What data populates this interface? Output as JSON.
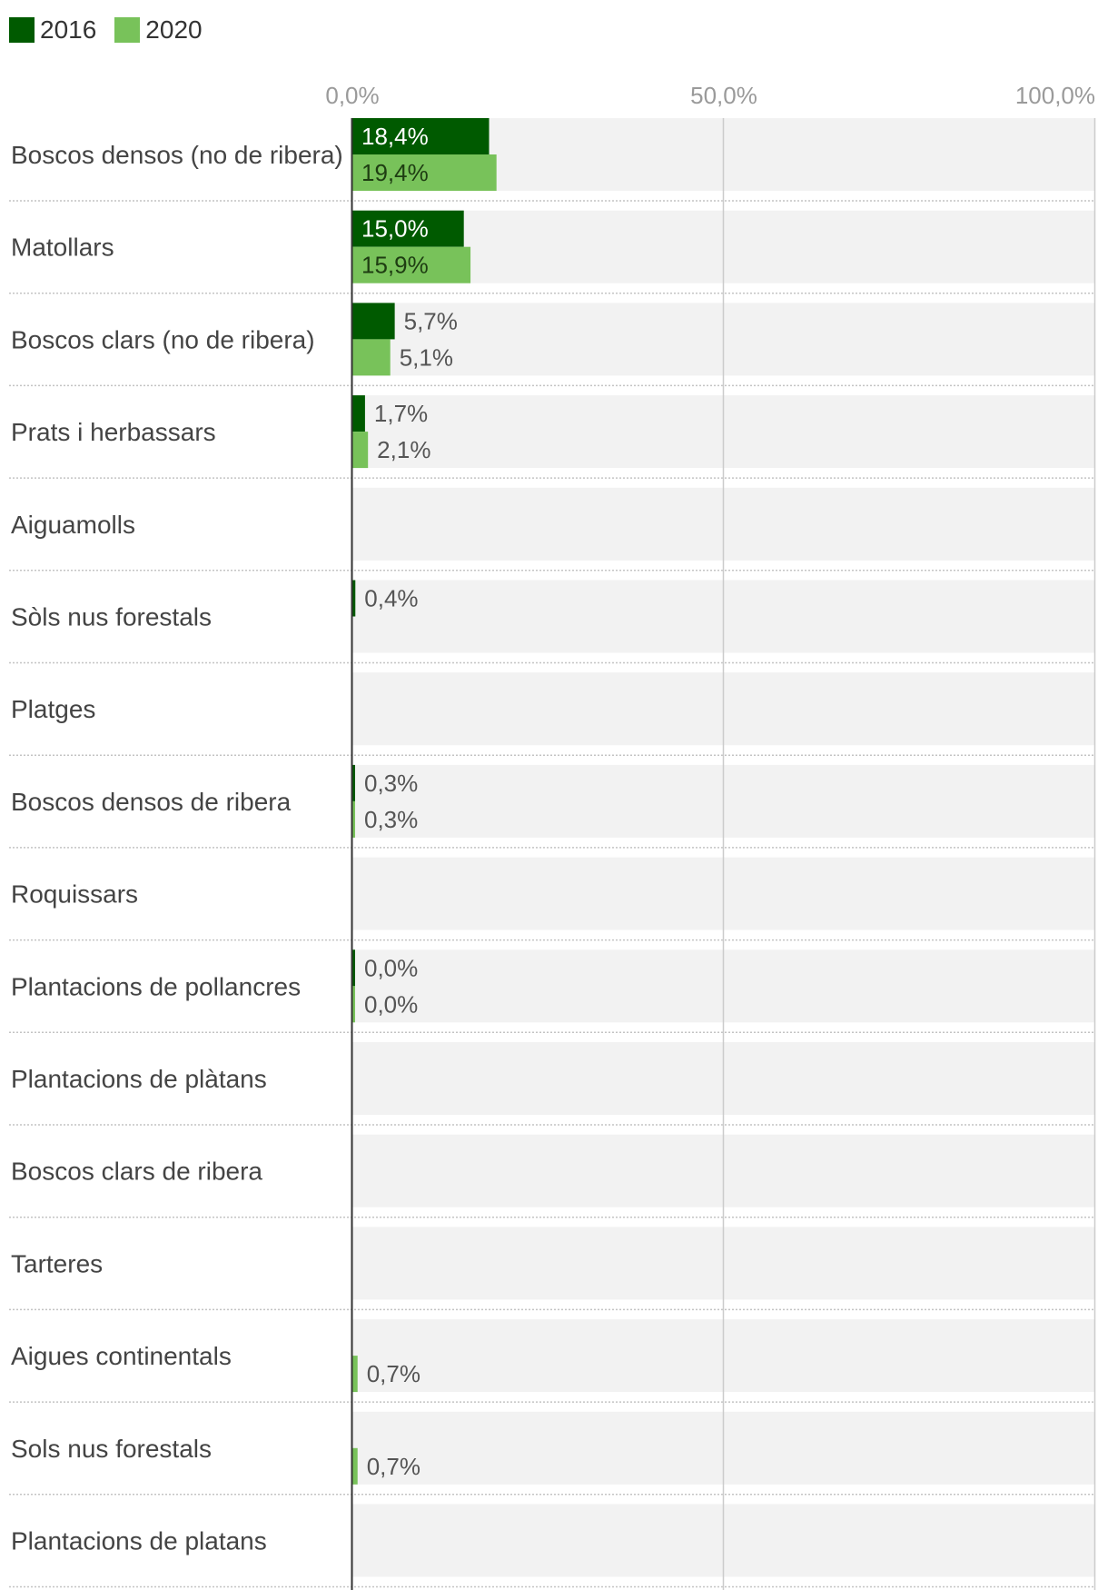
{
  "colors": {
    "s2016": "#005a00",
    "s2020": "#78c25a",
    "rowBg": "#f2f2f2",
    "grid": "#cccccc",
    "axis": "#333333"
  },
  "chart_data": {
    "type": "bar",
    "orientation": "horizontal",
    "categories": [
      "Boscos densos (no de ribera)",
      "Matollars",
      "Boscos clars (no de ribera)",
      "Prats i herbassars",
      "Aiguamolls",
      "Sòls nus forestals",
      "Platges",
      "Boscos densos de ribera",
      "Roquissars",
      "Plantacions de pollancres",
      "Plantacions de plàtans",
      "Boscos clars de ribera",
      "Tarteres",
      "Aigues continentals",
      "Sols nus forestals",
      "Plantacions de platans"
    ],
    "series": [
      {
        "name": "2016",
        "values": [
          18.4,
          15.0,
          5.7,
          1.7,
          null,
          0.4,
          null,
          0.3,
          null,
          0.0,
          null,
          null,
          null,
          null,
          null,
          null
        ],
        "labels": [
          "18,4%",
          "15,0%",
          "5,7%",
          "1,7%",
          null,
          "0,4%",
          null,
          "0,3%",
          null,
          "0,0%",
          null,
          null,
          null,
          null,
          null,
          null
        ]
      },
      {
        "name": "2020",
        "values": [
          19.4,
          15.9,
          5.1,
          2.1,
          null,
          null,
          null,
          0.3,
          null,
          0.0,
          null,
          null,
          null,
          0.7,
          0.7,
          null
        ],
        "labels": [
          "19,4%",
          "15,9%",
          "5,1%",
          "2,1%",
          null,
          null,
          null,
          "0,3%",
          null,
          "0,0%",
          null,
          null,
          null,
          "0,7%",
          "0,7%",
          null
        ]
      }
    ],
    "xlim": [
      0,
      100
    ],
    "xticks": [
      0,
      50,
      100
    ],
    "xtick_labels": [
      "0,0%",
      "50,0%",
      "100,0%"
    ],
    "legend_position": "top-left",
    "grid": true
  }
}
